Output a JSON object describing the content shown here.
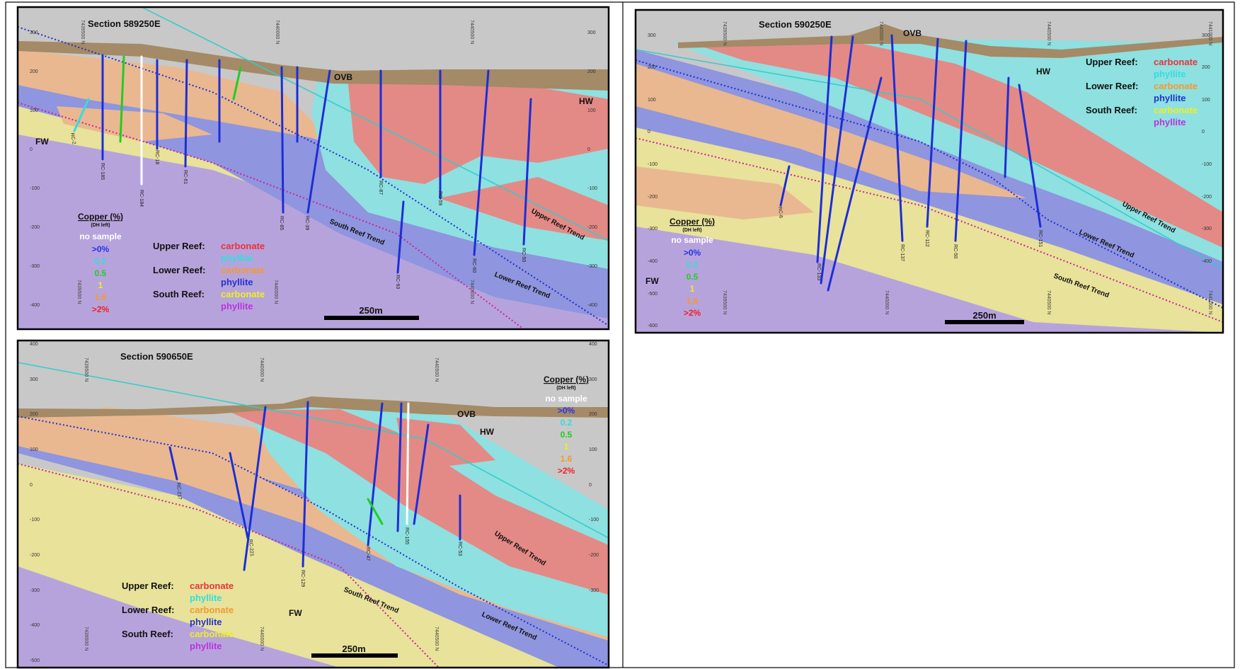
{
  "sections": [
    {
      "id": "s1",
      "title": "Section 589250E",
      "ovb": "OVB",
      "hw": "HW",
      "fw": "FW",
      "scale_bar": "250m",
      "elevation_ticks": [
        "300",
        "200",
        "100",
        "0",
        "-100",
        "-200",
        "-300",
        "-400"
      ],
      "northing_labels": [
        "7439500 N",
        "7440000 N",
        "7440500 N"
      ],
      "trend_labels": [
        "Upper Reef Trend",
        "South Reef Trend",
        "Lower Reef Trend"
      ],
      "hole_labels": [
        "RC-2",
        "RC-185",
        "RC-184",
        "RC-18",
        "RC-61",
        "RC-85",
        "RC-39",
        "RC-87",
        "RC-59",
        "RC-60",
        "RC-50",
        "RC-93"
      ]
    },
    {
      "id": "s2",
      "title": "Section 590250E",
      "ovb": "OVB",
      "hw": "HW",
      "fw": "FW",
      "scale_bar": "250m",
      "elevation_ticks": [
        "300",
        "200",
        "100",
        "0",
        "-100",
        "-200",
        "-300",
        "-400",
        "-500",
        "-600"
      ],
      "northing_labels": [
        "7439500 N",
        "7440000 N",
        "7440500 N",
        "7441000 N"
      ],
      "trend_labels": [
        "Upper Reef Trend",
        "Lower Reef Trend",
        "South Reef Trend"
      ],
      "hole_labels": [
        "RC-6",
        "RC-133",
        "RC-137",
        "RC-112",
        "RC-151",
        "RC-50"
      ]
    },
    {
      "id": "s3",
      "title": "Section 590650E",
      "ovb": "OVB",
      "hw": "HW",
      "fw": "FW",
      "scale_bar": "250m",
      "elevation_ticks": [
        "400",
        "300",
        "200",
        "100",
        "0",
        "-100",
        "-200",
        "-300",
        "-400",
        "-500"
      ],
      "northing_labels": [
        "7439500 N",
        "7440000 N",
        "7440500 N"
      ],
      "trend_labels": [
        "Upper Reef Trend",
        "South Reef Trend",
        "Lower Reef Trend"
      ],
      "hole_labels": [
        "RC-217",
        "RC-221",
        "RC-47",
        "RC-155",
        "RC-53",
        "RC-129"
      ]
    }
  ],
  "legend": {
    "copper_title": "Copper (%)",
    "copper_subtitle": "(DH left)",
    "copper_items": [
      {
        "label": "no sample",
        "color": "#ffffff"
      },
      {
        "label": ">0%",
        "color": "#2233ee"
      },
      {
        "label": "0.2",
        "color": "#33dddd"
      },
      {
        "label": "0.5",
        "color": "#22cc22"
      },
      {
        "label": "1",
        "color": "#eeee22"
      },
      {
        "label": "1.6",
        "color": "#f39a2c"
      },
      {
        "label": ">2%",
        "color": "#ee2222"
      }
    ],
    "reefs": [
      {
        "name": "Upper Reef:",
        "rocks": [
          {
            "label": "carbonate",
            "color": "#e8333a"
          },
          {
            "label": "phyllite",
            "color": "#33dddd"
          }
        ]
      },
      {
        "name": "Lower Reef:",
        "rocks": [
          {
            "label": "carbonate",
            "color": "#f39a2c"
          },
          {
            "label": "phyllite",
            "color": "#2233cc"
          }
        ]
      },
      {
        "name": "South Reef:",
        "rocks": [
          {
            "label": "carbonate",
            "color": "#eeee22"
          },
          {
            "label": "phyllite",
            "color": "#bb33dd"
          }
        ]
      }
    ]
  },
  "colors": {
    "background": "#c8c8c8",
    "overburden": "#a48a66",
    "upper_carbonate": "#e38a86",
    "upper_phyllite": "#8fe0e0",
    "lower_carbonate": "#e9b890",
    "lower_phyllite": "#8f95de",
    "south_carbonate": "#e8e29a",
    "south_phyllite": "#b7a3dc",
    "drillhole": "#1d2ed6",
    "south_trend_line": "#cc2299",
    "lower_trend_line": "#1d2ed6",
    "upper_trend_line": "#33cccc"
  }
}
